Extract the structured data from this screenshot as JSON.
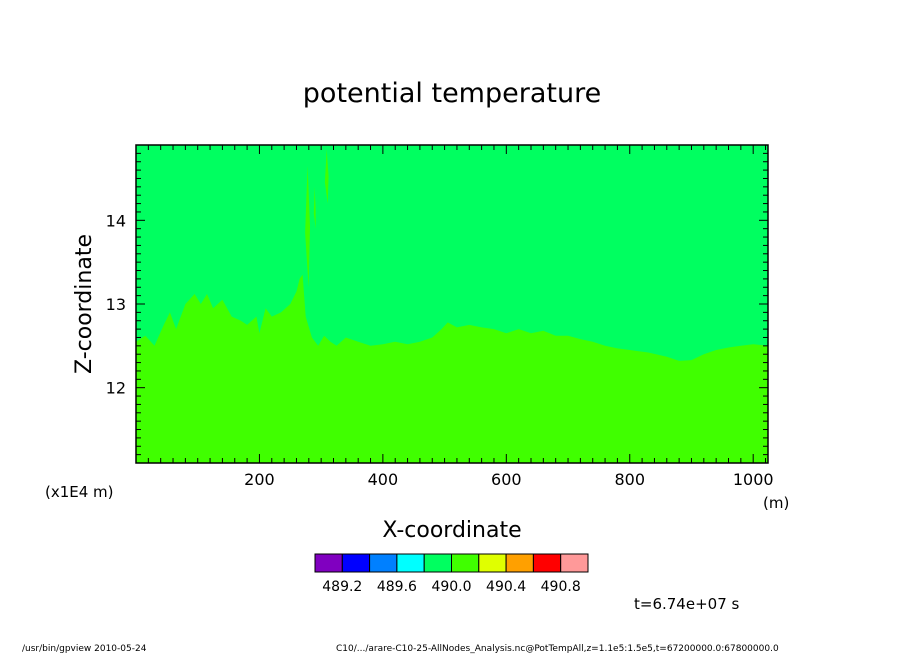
{
  "chart_data": {
    "type": "heatmap",
    "title": "potential temperature",
    "xlabel": "X-coordinate",
    "ylabel": "Z-coordinate",
    "x_unit": "(m)",
    "y_unit": "(x1E4 m)",
    "xlim": [
      0,
      1024
    ],
    "ylim": [
      11.1,
      14.9
    ],
    "x_ticks": [
      200,
      400,
      600,
      800,
      1000
    ],
    "y_ticks": [
      12,
      13,
      14
    ],
    "colorbar": {
      "colors": [
        "#8000c0",
        "#0000ff",
        "#0080ff",
        "#00ffff",
        "#00ff60",
        "#40ff00",
        "#e0ff00",
        "#ffa000",
        "#ff0000",
        "#ff9999"
      ],
      "labels": [
        "489.2",
        "489.6",
        "490.0",
        "490.4",
        "490.8"
      ]
    },
    "regions": [
      {
        "name": "upper",
        "color": "#00ff60"
      },
      {
        "name": "lower",
        "color": "#40ff00"
      }
    ],
    "boundary": [
      [
        0,
        12.55
      ],
      [
        15,
        12.62
      ],
      [
        30,
        12.5
      ],
      [
        45,
        12.75
      ],
      [
        55,
        12.9
      ],
      [
        65,
        12.7
      ],
      [
        80,
        13.0
      ],
      [
        95,
        13.12
      ],
      [
        105,
        13.0
      ],
      [
        115,
        13.12
      ],
      [
        125,
        12.95
      ],
      [
        140,
        13.05
      ],
      [
        155,
        12.85
      ],
      [
        170,
        12.8
      ],
      [
        180,
        12.75
      ],
      [
        195,
        12.85
      ],
      [
        200,
        12.65
      ],
      [
        210,
        12.95
      ],
      [
        220,
        12.85
      ],
      [
        235,
        12.9
      ],
      [
        250,
        13.0
      ],
      [
        260,
        13.15
      ],
      [
        265,
        13.3
      ],
      [
        270,
        13.35
      ],
      [
        275,
        12.85
      ],
      [
        285,
        12.6
      ],
      [
        295,
        12.5
      ],
      [
        305,
        12.62
      ],
      [
        315,
        12.55
      ],
      [
        325,
        12.5
      ],
      [
        340,
        12.6
      ],
      [
        360,
        12.55
      ],
      [
        380,
        12.5
      ],
      [
        400,
        12.52
      ],
      [
        420,
        12.55
      ],
      [
        440,
        12.52
      ],
      [
        460,
        12.55
      ],
      [
        480,
        12.6
      ],
      [
        495,
        12.7
      ],
      [
        505,
        12.78
      ],
      [
        520,
        12.72
      ],
      [
        540,
        12.75
      ],
      [
        560,
        12.72
      ],
      [
        580,
        12.7
      ],
      [
        600,
        12.65
      ],
      [
        620,
        12.7
      ],
      [
        640,
        12.65
      ],
      [
        660,
        12.68
      ],
      [
        680,
        12.62
      ],
      [
        700,
        12.62
      ],
      [
        720,
        12.58
      ],
      [
        740,
        12.55
      ],
      [
        760,
        12.5
      ],
      [
        780,
        12.47
      ],
      [
        800,
        12.45
      ],
      [
        830,
        12.42
      ],
      [
        860,
        12.37
      ],
      [
        880,
        12.32
      ],
      [
        900,
        12.33
      ],
      [
        920,
        12.4
      ],
      [
        940,
        12.45
      ],
      [
        960,
        12.48
      ],
      [
        980,
        12.5
      ],
      [
        1000,
        12.52
      ],
      [
        1024,
        12.5
      ]
    ],
    "plumes": [
      {
        "x0": 274,
        "x1": 282,
        "ytop": 14.65,
        "ybottom": 13.2
      },
      {
        "x0": 288,
        "x1": 291,
        "ytop": 14.4,
        "ybottom": 13.9
      },
      {
        "x0": 306,
        "x1": 312,
        "ytop": 14.85,
        "ybottom": 14.2
      }
    ],
    "time_label": "t=6.74e+07 s",
    "footer_left": "/usr/bin/gpview  2010-05-24",
    "footer_right": "C10/.../arare-C10-25-AllNodes_Analysis.nc@PotTempAll,z=1.1e5:1.5e5,t=67200000.0:67800000.0"
  }
}
